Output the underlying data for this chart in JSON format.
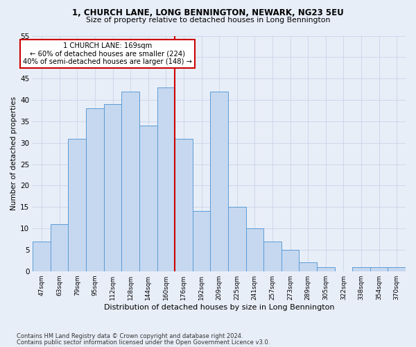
{
  "title": "1, CHURCH LANE, LONG BENNINGTON, NEWARK, NG23 5EU",
  "subtitle": "Size of property relative to detached houses in Long Bennington",
  "xlabel": "Distribution of detached houses by size in Long Bennington",
  "ylabel": "Number of detached properties",
  "categories": [
    "47sqm",
    "63sqm",
    "79sqm",
    "95sqm",
    "112sqm",
    "128sqm",
    "144sqm",
    "160sqm",
    "176sqm",
    "192sqm",
    "209sqm",
    "225sqm",
    "241sqm",
    "257sqm",
    "273sqm",
    "289sqm",
    "305sqm",
    "322sqm",
    "338sqm",
    "354sqm",
    "370sqm"
  ],
  "values": [
    7,
    11,
    31,
    38,
    39,
    42,
    34,
    43,
    31,
    14,
    42,
    15,
    10,
    7,
    5,
    2,
    1,
    0,
    1,
    1,
    1
  ],
  "bar_color": "#c5d8f0",
  "bar_edge_color": "#5b9bd5",
  "property_line_idx": 8,
  "property_line_label": "1 CHURCH LANE: 169sqm",
  "annotation_line1": "← 60% of detached houses are smaller (224)",
  "annotation_line2": "40% of semi-detached houses are larger (148) →",
  "property_line_color": "#cc0000",
  "ylim": [
    0,
    55
  ],
  "yticks": [
    0,
    5,
    10,
    15,
    20,
    25,
    30,
    35,
    40,
    45,
    50,
    55
  ],
  "grid_color": "#c8d4e8",
  "background_color": "#e8eef8",
  "footnote1": "Contains HM Land Registry data © Crown copyright and database right 2024.",
  "footnote2": "Contains public sector information licensed under the Open Government Licence v3.0."
}
